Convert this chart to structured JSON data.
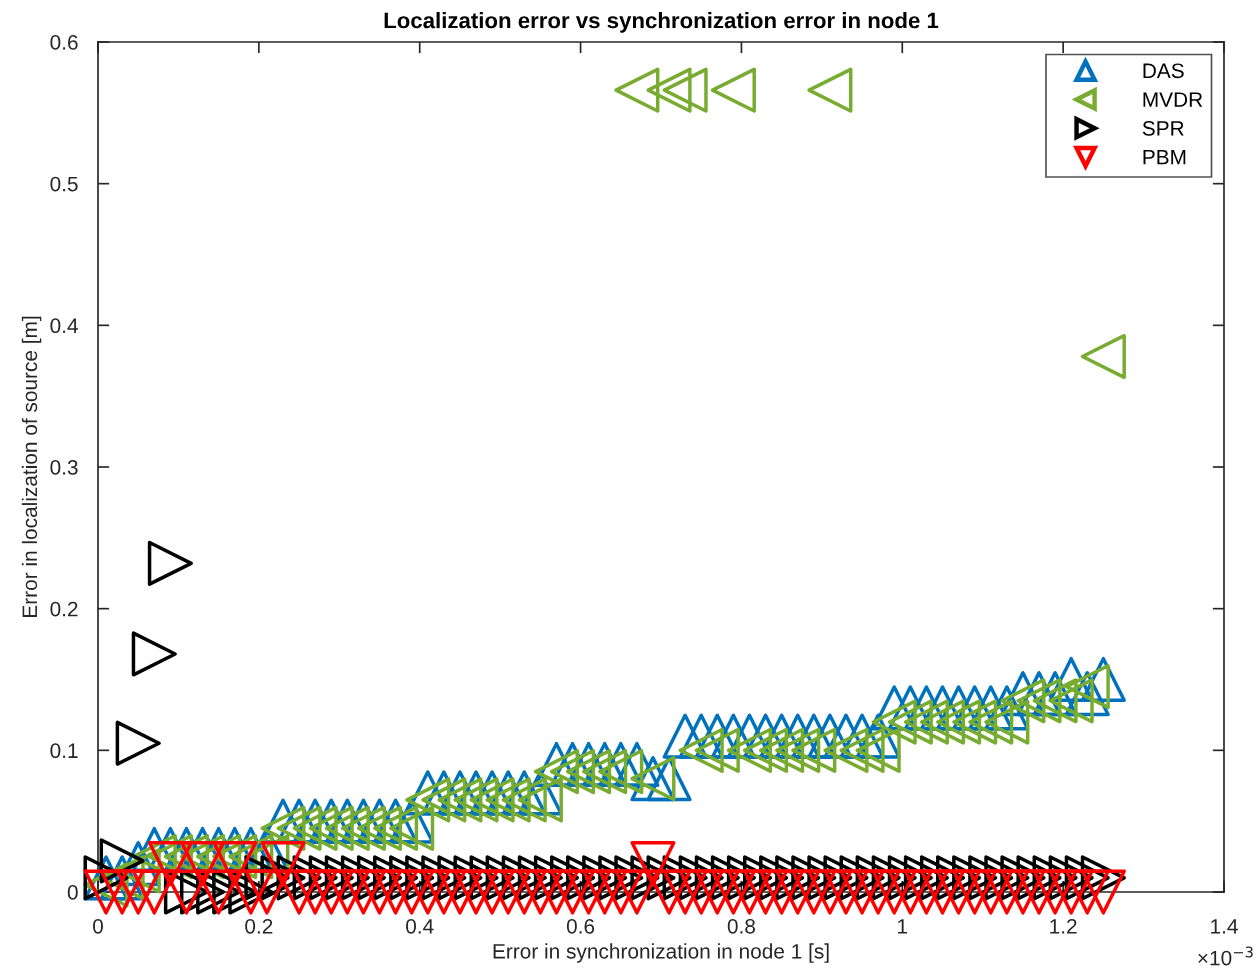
{
  "chart_data": {
    "type": "scatter",
    "title": "Localization error vs synchronization error in node 1",
    "xlabel": "Error in synchronization in node 1 [s]",
    "ylabel": "Error in localization of source [m]",
    "annotations": [
      "×10$^{−3}$"
    ],
    "xlim": [
      0,
      1.4
    ],
    "xticks": [
      0,
      0.2,
      0.4,
      0.6,
      0.8,
      1,
      1.2,
      1.4
    ],
    "ylim": [
      0,
      0.6
    ],
    "yticks": [
      0,
      0.1,
      0.2,
      0.3,
      0.4,
      0.5,
      0.6
    ],
    "legend": "top right",
    "x": [
      0.01,
      0.03,
      0.05,
      0.07,
      0.09,
      0.11,
      0.13,
      0.15,
      0.17,
      0.19,
      0.21,
      0.23,
      0.25,
      0.27,
      0.29,
      0.31,
      0.33,
      0.35,
      0.37,
      0.39,
      0.41,
      0.43,
      0.45,
      0.47,
      0.49,
      0.51,
      0.53,
      0.55,
      0.57,
      0.59,
      0.61,
      0.63,
      0.65,
      0.67,
      0.69,
      0.71,
      0.73,
      0.75,
      0.77,
      0.79,
      0.81,
      0.83,
      0.85,
      0.87,
      0.89,
      0.91,
      0.93,
      0.95,
      0.97,
      0.99,
      1.01,
      1.03,
      1.05,
      1.07,
      1.09,
      1.11,
      1.13,
      1.15,
      1.17,
      1.19,
      1.21,
      1.23,
      1.25
    ],
    "series": [
      {
        "name": "DAS",
        "color": "#0072bd",
        "marker": "triangle-up",
        "values": [
          0.01,
          0.01,
          0.02,
          0.03,
          0.03,
          0.03,
          0.03,
          0.03,
          0.03,
          0.03,
          0.03,
          0.05,
          0.05,
          0.05,
          0.05,
          0.05,
          0.05,
          0.05,
          0.05,
          0.05,
          0.07,
          0.07,
          0.07,
          0.07,
          0.07,
          0.07,
          0.07,
          0.07,
          0.09,
          0.09,
          0.09,
          0.09,
          0.09,
          0.09,
          0.08,
          0.08,
          0.11,
          0.11,
          0.11,
          0.11,
          0.11,
          0.11,
          0.11,
          0.11,
          0.11,
          0.11,
          0.11,
          0.11,
          0.11,
          0.13,
          0.13,
          0.13,
          0.13,
          0.13,
          0.13,
          0.13,
          0.13,
          0.14,
          0.14,
          0.14,
          0.15,
          0.14,
          0.15
        ]
      },
      {
        "name": "MVDR",
        "color": "#77ac30",
        "marker": "triangle-left",
        "values": [
          0.005,
          0.01,
          0.015,
          0.025,
          0.025,
          0.025,
          0.025,
          0.025,
          0.025,
          0.025,
          0.025,
          0.045,
          0.045,
          0.045,
          0.045,
          0.045,
          0.045,
          0.045,
          0.045,
          0.045,
          0.065,
          0.065,
          0.065,
          0.065,
          0.065,
          0.065,
          0.065,
          0.065,
          0.085,
          0.085,
          0.085,
          0.085,
          0.085,
          0.566,
          0.08,
          0.566,
          0.566,
          0.1,
          0.1,
          0.566,
          0.1,
          0.1,
          0.1,
          0.1,
          0.1,
          0.566,
          0.1,
          0.1,
          0.1,
          0.12,
          0.12,
          0.12,
          0.12,
          0.12,
          0.12,
          0.12,
          0.12,
          0.135,
          0.135,
          0.135,
          0.135,
          0.145,
          0.378
        ]
      },
      {
        "name": "SPR",
        "color": "#000000",
        "marker": "triangle-right",
        "values": [
          0.01,
          0.022,
          0.105,
          0.168,
          0.232,
          0,
          0,
          0,
          0,
          0,
          0.01,
          0.01,
          0.01,
          0.01,
          0.01,
          0.01,
          0.01,
          0.01,
          0.01,
          0.01,
          0.01,
          0.01,
          0.01,
          0.01,
          0.01,
          0.01,
          0.01,
          0.01,
          0.01,
          0.01,
          0.01,
          0.01,
          0.01,
          0.01,
          0.01,
          0.01,
          0.01,
          0.01,
          0.01,
          0.01,
          0.01,
          0.01,
          0.01,
          0.01,
          0.01,
          0.01,
          0.01,
          0.01,
          0.01,
          0.01,
          0.01,
          0.01,
          0.01,
          0.01,
          0.01,
          0.01,
          0.01,
          0.01,
          0.01,
          0.01,
          0.01,
          0.01,
          0.01
        ]
      },
      {
        "name": "PBM",
        "color": "#ff0000",
        "marker": "triangle-down",
        "values": [
          0,
          0,
          0,
          0,
          0.02,
          0,
          0.02,
          0,
          0.02,
          0,
          0,
          0.02,
          0,
          0,
          0,
          0,
          0,
          0,
          0,
          0,
          0,
          0,
          0,
          0,
          0,
          0,
          0,
          0,
          0,
          0,
          0,
          0,
          0,
          0,
          0.02,
          0,
          0,
          0,
          0,
          0,
          0,
          0,
          0,
          0,
          0,
          0,
          0,
          0,
          0,
          0,
          0,
          0,
          0,
          0,
          0,
          0,
          0,
          0,
          0,
          0,
          0,
          0,
          0
        ]
      }
    ]
  }
}
